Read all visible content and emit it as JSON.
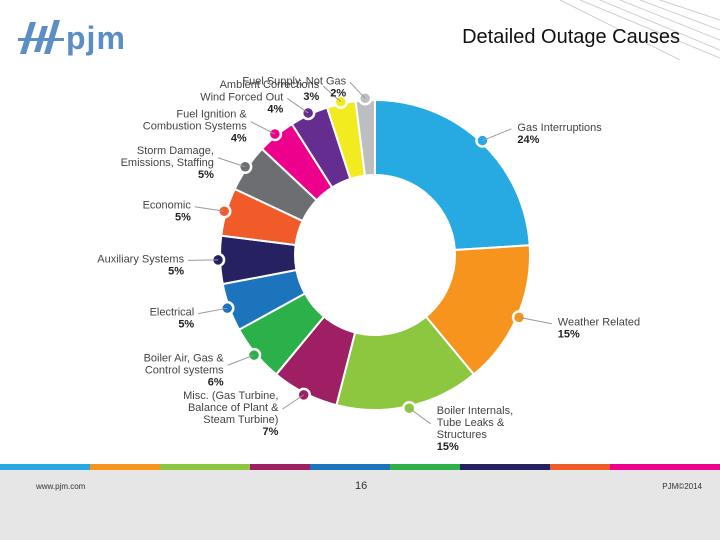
{
  "slide": {
    "title": "Detailed Outage Causes",
    "logo_text": "pjm",
    "footer_left": "www.pjm.com",
    "page_number": "16",
    "footer_right": "PJM©2014"
  },
  "colors": {
    "brand_blue": "#5b8ec4",
    "footer_gray": "#e6e6e6"
  },
  "chart_data": {
    "type": "pie",
    "donut": true,
    "title": "",
    "slices": [
      {
        "label": "Gas Interruptions",
        "value": 24,
        "pct_label": "24%",
        "color": "#27aae1"
      },
      {
        "label": "Weather Related",
        "value": 15,
        "pct_label": "15%",
        "color": "#f7941d"
      },
      {
        "label": "Boiler Internals, Tube Leaks & Structures",
        "value": 15,
        "pct_label": "15%",
        "color": "#8dc63f"
      },
      {
        "label": "Misc. (Gas Turbine, Balance of Plant & Steam Turbine)",
        "value": 7,
        "pct_label": "7%",
        "color": "#9e1f63"
      },
      {
        "label": "Boiler Air, Gas & Control systems",
        "value": 6,
        "pct_label": "6%",
        "color": "#2bb04a"
      },
      {
        "label": "Electrical",
        "value": 5,
        "pct_label": "5%",
        "color": "#1c75bc"
      },
      {
        "label": "Auxiliary Systems",
        "value": 5,
        "pct_label": "5%",
        "color": "#262262"
      },
      {
        "label": "Economic",
        "value": 5,
        "pct_label": "5%",
        "color": "#f15a29"
      },
      {
        "label": "Storm Damage, Emissions, Staffing",
        "value": 5,
        "pct_label": "5%",
        "color": "#6d6e71"
      },
      {
        "label": "Fuel Ignition & Combustion Systems",
        "value": 4,
        "pct_label": "4%",
        "color": "#ec008c"
      },
      {
        "label": "Wind Forced Out",
        "value": 4,
        "pct_label": "4%",
        "color": "#662d91"
      },
      {
        "label": "Ambient Corrections",
        "value": 3,
        "pct_label": "3%",
        "color": "#f2eb1f"
      },
      {
        "label": "Fuel Supply, Not Gas",
        "value": 2,
        "pct_label": "2%",
        "color": "#bcbec0"
      }
    ]
  }
}
